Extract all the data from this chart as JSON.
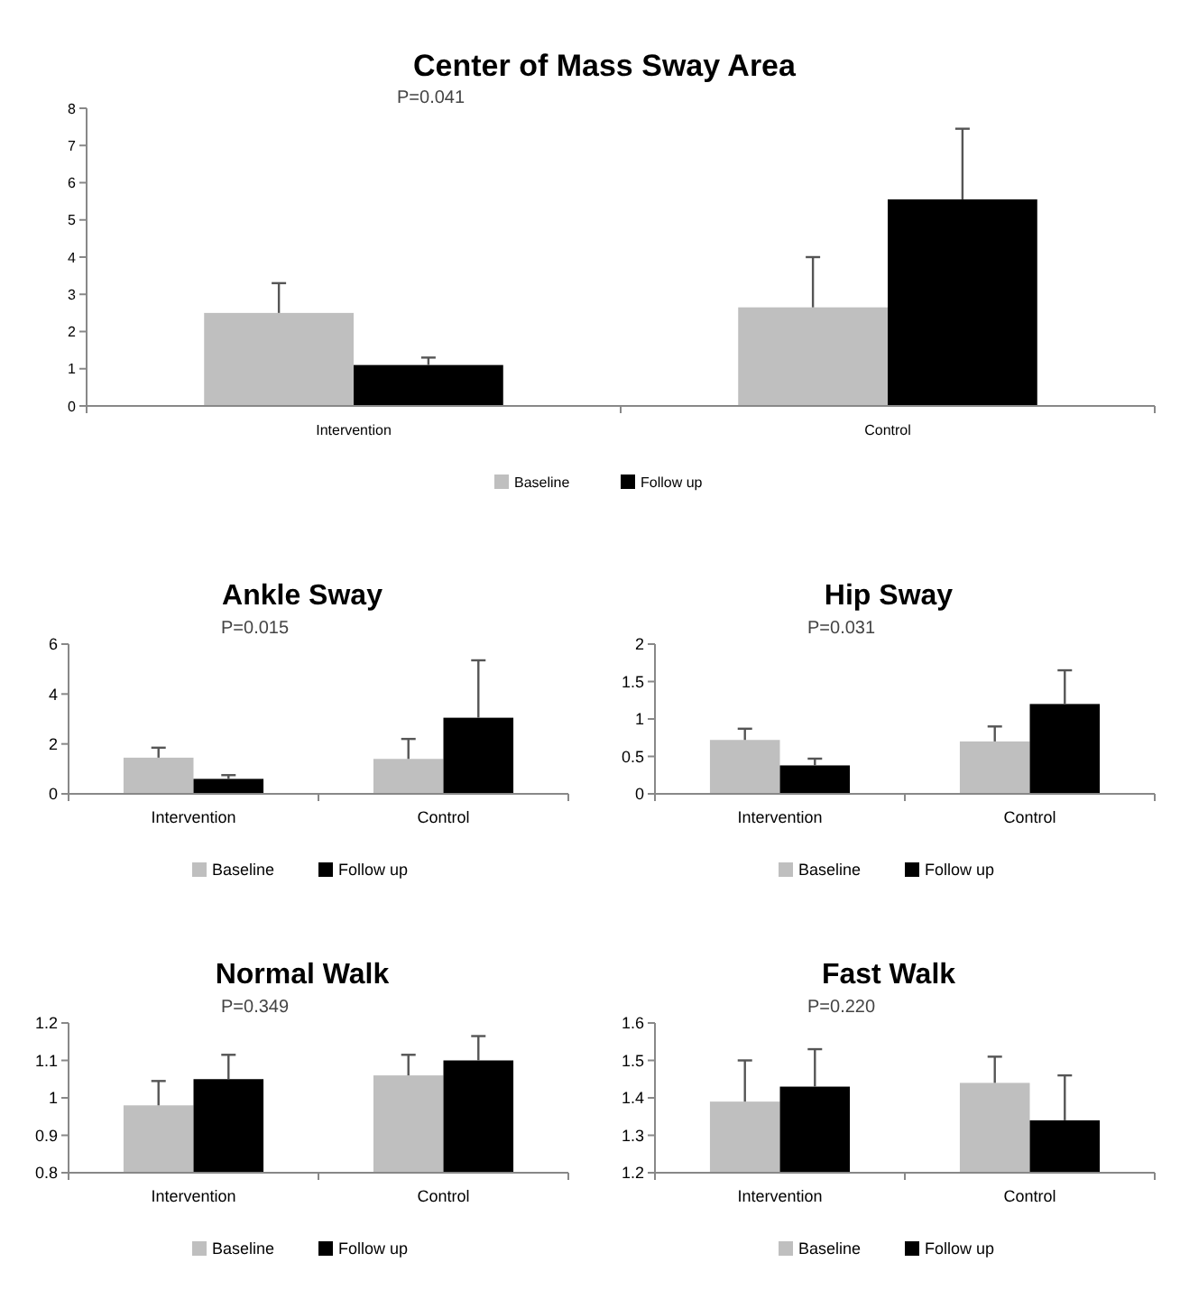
{
  "chart_data": [
    {
      "type": "bar",
      "title": "Center of Mass Sway Area",
      "annotations": [
        "P=0.041"
      ],
      "categories": [
        "Intervention",
        "Control"
      ],
      "series": [
        {
          "name": "Baseline",
          "color": "#bfbfbf",
          "values": [
            2.5,
            2.65
          ],
          "errors": [
            [
              2.5,
              3.3
            ],
            [
              2.65,
              4.0
            ]
          ]
        },
        {
          "name": "Follow up",
          "color": "#000000",
          "values": [
            1.1,
            5.55
          ],
          "errors": [
            [
              1.1,
              1.3
            ],
            [
              5.55,
              7.45
            ]
          ]
        }
      ],
      "ylim": [
        0,
        8
      ],
      "yticks": [
        0,
        1,
        2,
        3,
        4,
        5,
        6,
        7,
        8
      ],
      "grid": false,
      "legend": "bottom"
    },
    {
      "type": "bar",
      "title": "Ankle Sway",
      "annotations": [
        "P=0.015"
      ],
      "categories": [
        "Intervention",
        "Control"
      ],
      "series": [
        {
          "name": "Baseline",
          "color": "#bfbfbf",
          "values": [
            1.45,
            1.4
          ],
          "errors": [
            [
              1.45,
              1.85
            ],
            [
              1.4,
              2.2
            ]
          ]
        },
        {
          "name": "Follow up",
          "color": "#000000",
          "values": [
            0.6,
            3.05
          ],
          "errors": [
            [
              0.6,
              0.75
            ],
            [
              3.05,
              5.35
            ]
          ]
        }
      ],
      "ylim": [
        0,
        6
      ],
      "yticks": [
        0,
        2,
        4,
        6
      ],
      "grid": false,
      "legend": "bottom"
    },
    {
      "type": "bar",
      "title": "Hip Sway",
      "annotations": [
        "P=0.031"
      ],
      "categories": [
        "Intervention",
        "Control"
      ],
      "series": [
        {
          "name": "Baseline",
          "color": "#bfbfbf",
          "values": [
            0.72,
            0.7
          ],
          "errors": [
            [
              0.72,
              0.87
            ],
            [
              0.7,
              0.9
            ]
          ]
        },
        {
          "name": "Follow up",
          "color": "#000000",
          "values": [
            0.38,
            1.2
          ],
          "errors": [
            [
              0.38,
              0.47
            ],
            [
              1.2,
              1.65
            ]
          ]
        }
      ],
      "ylim": [
        0,
        2
      ],
      "yticks": [
        0,
        0.5,
        1,
        1.5,
        2
      ],
      "grid": false,
      "legend": "bottom"
    },
    {
      "type": "bar",
      "title": "Normal Walk",
      "annotations": [
        "P=0.349"
      ],
      "categories": [
        "Intervention",
        "Control"
      ],
      "series": [
        {
          "name": "Baseline",
          "color": "#bfbfbf",
          "values": [
            0.98,
            1.06
          ],
          "errors": [
            [
              0.98,
              1.045
            ],
            [
              1.06,
              1.115
            ]
          ]
        },
        {
          "name": "Follow up",
          "color": "#000000",
          "values": [
            1.05,
            1.1
          ],
          "errors": [
            [
              1.05,
              1.115
            ],
            [
              1.1,
              1.165
            ]
          ]
        }
      ],
      "ylim": [
        0.8,
        1.2
      ],
      "yticks": [
        0.8,
        0.9,
        1,
        1.1,
        1.2
      ],
      "grid": false,
      "legend": "bottom"
    },
    {
      "type": "bar",
      "title": "Fast Walk",
      "annotations": [
        "P=0.220"
      ],
      "categories": [
        "Intervention",
        "Control"
      ],
      "series": [
        {
          "name": "Baseline",
          "color": "#bfbfbf",
          "values": [
            1.39,
            1.44
          ],
          "errors": [
            [
              1.39,
              1.5
            ],
            [
              1.44,
              1.51
            ]
          ]
        },
        {
          "name": "Follow up",
          "color": "#000000",
          "values": [
            1.43,
            1.34
          ],
          "errors": [
            [
              1.43,
              1.53
            ],
            [
              1.34,
              1.46
            ]
          ]
        }
      ],
      "ylim": [
        1.2,
        1.6
      ],
      "yticks": [
        1.2,
        1.3,
        1.4,
        1.5,
        1.6
      ],
      "grid": false,
      "legend": "bottom"
    }
  ]
}
